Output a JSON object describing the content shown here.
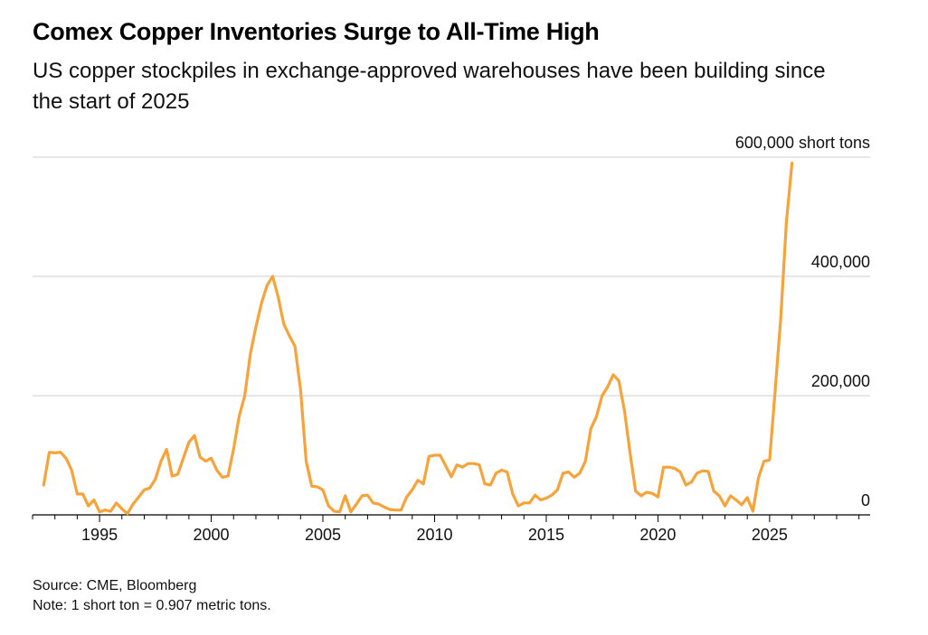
{
  "title": "Comex Copper Inventories Surge to All-Time High",
  "subtitle": "US copper stockpiles in exchange-approved warehouses have been building since the start of 2025",
  "footer": {
    "source": "Source: CME, Bloomberg",
    "note": "Note: 1 short ton = 0.907 metric tons."
  },
  "colors": {
    "line": "#f6a33a",
    "grid": "#cccccc",
    "axis": "#000000"
  },
  "chart_data": {
    "type": "line",
    "title": "Comex Copper Inventories Surge to All-Time High",
    "unit": "short tons",
    "xlim": [
      1992.0,
      2029.5
    ],
    "ylim": [
      0,
      600000
    ],
    "x_ticks": [
      1995,
      2000,
      2005,
      2010,
      2015,
      2020,
      2025
    ],
    "x_tick_labels": [
      "1995",
      "2000",
      "2005",
      "2010",
      "2015",
      "2020",
      "2025"
    ],
    "y_ticks": [
      0,
      200000,
      400000,
      600000
    ],
    "y_tick_labels": [
      "0",
      "200,000",
      "400,000",
      "600,000 short tons"
    ],
    "grid": true,
    "series": [
      {
        "x": [
          1992.5,
          1992.75,
          1993.0,
          1993.25,
          1993.5,
          1993.75,
          1994.0,
          1994.25,
          1994.5,
          1994.75,
          1995.0,
          1995.25,
          1995.5,
          1995.75,
          1996.0,
          1996.25,
          1996.5,
          1996.75,
          1997.0,
          1997.25,
          1997.5,
          1997.75,
          1998.0,
          1998.25,
          1998.5,
          1998.75,
          1999.0,
          1999.25,
          1999.5,
          1999.75,
          2000.0,
          2000.25,
          2000.5,
          2000.75,
          2001.0,
          2001.25,
          2001.5,
          2001.75,
          2002.0,
          2002.25,
          2002.5,
          2002.75,
          2003.0,
          2003.25,
          2003.5,
          2003.75,
          2004.0,
          2004.25,
          2004.5,
          2004.75,
          2005.0,
          2005.25,
          2005.5,
          2005.75,
          2006.0,
          2006.25,
          2006.5,
          2006.75,
          2007.0,
          2007.25,
          2007.5,
          2007.75,
          2008.0,
          2008.25,
          2008.5,
          2008.75,
          2009.0,
          2009.25,
          2009.5,
          2009.75,
          2010.0,
          2010.25,
          2010.5,
          2010.75,
          2011.0,
          2011.25,
          2011.5,
          2011.75,
          2012.0,
          2012.25,
          2012.5,
          2012.75,
          2013.0,
          2013.25,
          2013.5,
          2013.75,
          2014.0,
          2014.25,
          2014.5,
          2014.75,
          2015.0,
          2015.25,
          2015.5,
          2015.75,
          2016.0,
          2016.25,
          2016.5,
          2016.75,
          2017.0,
          2017.25,
          2017.5,
          2017.75,
          2018.0,
          2018.25,
          2018.5,
          2018.75,
          2019.0,
          2019.25,
          2019.5,
          2019.75,
          2020.0,
          2020.25,
          2020.5,
          2020.75,
          2021.0,
          2021.25,
          2021.5,
          2021.75,
          2022.0,
          2022.25,
          2022.5,
          2022.75,
          2023.0,
          2023.25,
          2023.5,
          2023.75,
          2024.0,
          2024.25,
          2024.5,
          2024.75,
          2025.0,
          2025.25,
          2025.5,
          2025.75,
          2026.0
        ],
        "values": [
          50000,
          105000,
          104000,
          105000,
          95000,
          75000,
          35000,
          35000,
          15000,
          25000,
          5000,
          8000,
          6000,
          20000,
          10000,
          2000,
          18000,
          30000,
          42000,
          45000,
          60000,
          90000,
          110000,
          65000,
          68000,
          95000,
          122000,
          133000,
          97000,
          90000,
          95000,
          75000,
          63000,
          65000,
          110000,
          165000,
          200000,
          270000,
          315000,
          355000,
          385000,
          400000,
          365000,
          320000,
          300000,
          283000,
          210000,
          90000,
          48000,
          47000,
          42000,
          15000,
          6000,
          5000,
          32000,
          5000,
          18000,
          32000,
          33000,
          20000,
          18000,
          13000,
          9000,
          8000,
          8000,
          30000,
          42000,
          58000,
          52000,
          98000,
          100000,
          100000,
          82000,
          64000,
          84000,
          80000,
          86000,
          86000,
          84000,
          52000,
          50000,
          70000,
          75000,
          72000,
          35000,
          15000,
          20000,
          20000,
          33000,
          25000,
          28000,
          33000,
          42000,
          70000,
          72000,
          63000,
          70000,
          90000,
          145000,
          165000,
          200000,
          215000,
          235000,
          225000,
          175000,
          105000,
          40000,
          32000,
          38000,
          36000,
          30000,
          80000,
          80000,
          78000,
          72000,
          50000,
          55000,
          70000,
          74000,
          73000,
          40000,
          32000,
          15000,
          32000,
          25000,
          17000,
          29000,
          6000,
          62000,
          90000,
          92000,
          210000,
          330000,
          490000,
          590000
        ]
      }
    ]
  }
}
